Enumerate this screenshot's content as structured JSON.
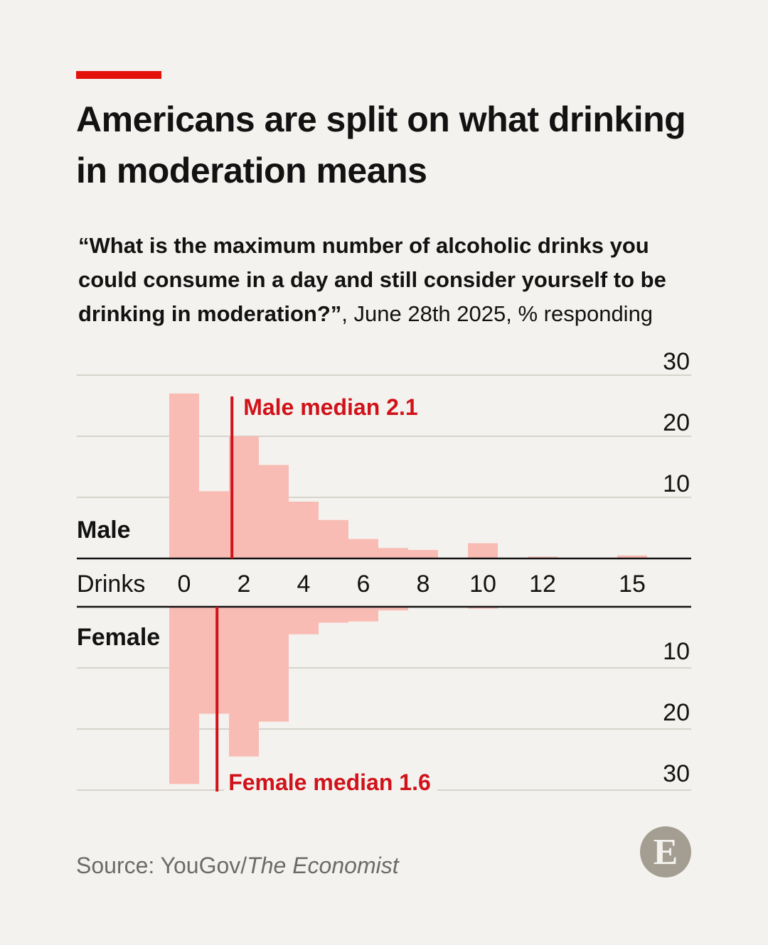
{
  "header": {
    "title": "Americans are split on what drinking in moderation means",
    "subtitle_question": "“What is the maximum number of alcoholic drinks you could consume in a day and still consider yourself to be drinking in moderation?”",
    "subtitle_meta": ", June 28th 2025, % responding"
  },
  "footer": {
    "source_prefix": "Source: YouGov/",
    "source_publication": "The Economist",
    "logo_letter": "E"
  },
  "colors": {
    "bar": "#f9bcb4",
    "median": "#d0121a",
    "accent": "#e3120b",
    "grid": "#d6d3cc",
    "axis": "#121212"
  },
  "chart_data": {
    "type": "bar",
    "title": "Americans are split on what drinking in moderation means",
    "xlabel": "Drinks",
    "ylabel": "% responding",
    "ylim": [
      0,
      30
    ],
    "x_tick_labels": [
      "0",
      "2",
      "4",
      "6",
      "8",
      "10",
      "12",
      "15"
    ],
    "x_tick_positions": [
      0,
      2,
      4,
      6,
      8,
      10,
      12,
      15
    ],
    "y_ticks": [
      10,
      20,
      30
    ],
    "series": [
      {
        "name": "Male",
        "direction": "up",
        "x": [
          0,
          1,
          2,
          3,
          4,
          5,
          6,
          7,
          8,
          10,
          12,
          15
        ],
        "values": [
          27,
          11,
          20,
          15.3,
          9.3,
          6.3,
          3.2,
          1.7,
          1.4,
          2.5,
          0.3,
          0.5
        ],
        "median": 2.1,
        "median_label": "Male median 2.1"
      },
      {
        "name": "Female",
        "direction": "down",
        "x": [
          0,
          1,
          2,
          3,
          4,
          5,
          6,
          7,
          8,
          10
        ],
        "values": [
          29,
          17.5,
          24.5,
          18.8,
          4.5,
          2.6,
          2.4,
          0.6,
          0.1,
          0.3
        ],
        "median": 1.6,
        "median_label": "Female median 1.6"
      }
    ]
  }
}
